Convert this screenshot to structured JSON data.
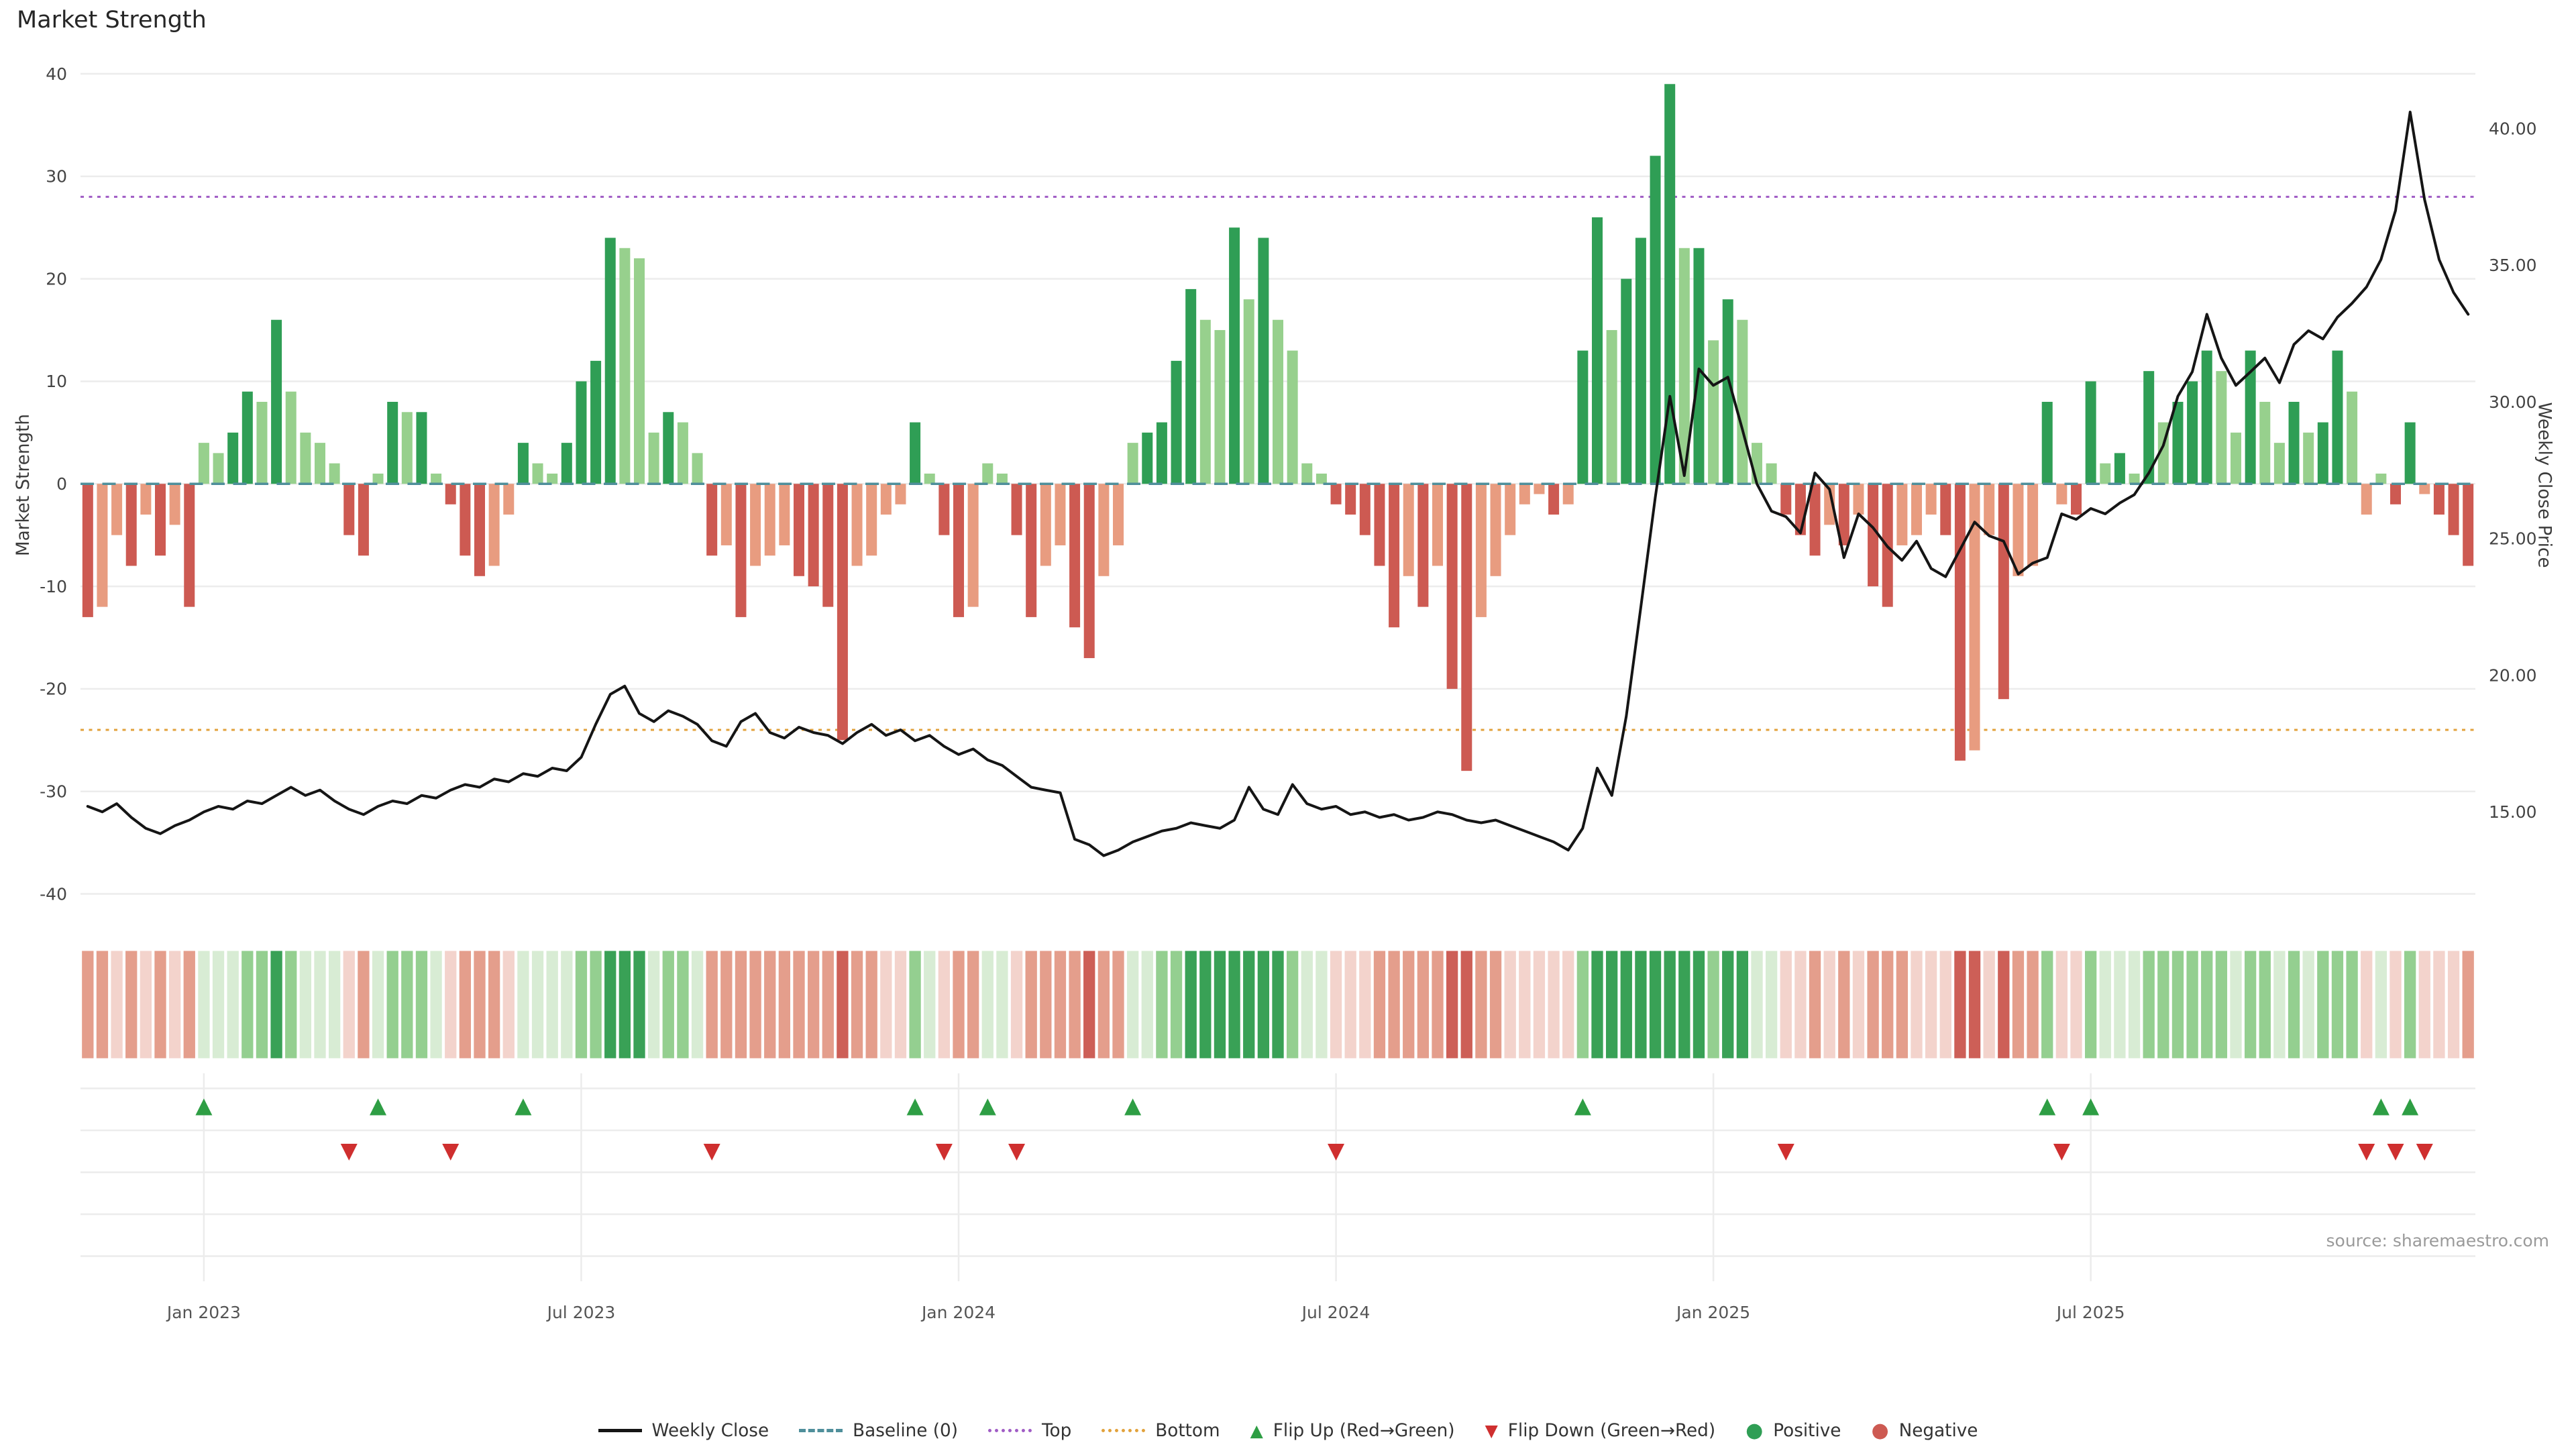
{
  "title": "Market Strength",
  "source": "source: sharemaestro.com",
  "axes": {
    "left_label": "Market Strength",
    "right_label": "Weekly Close Price",
    "left_ticks": [
      -40,
      -30,
      -20,
      -10,
      0,
      10,
      20,
      30,
      40
    ],
    "right_ticks": [
      15,
      20,
      25,
      30,
      35,
      40
    ],
    "right_tick_labels": [
      "15.00",
      "20.00",
      "25.00",
      "30.00",
      "35.00",
      "40.00"
    ],
    "x_tick_labels": [
      "Jan 2023",
      "Jul 2023",
      "Jan 2024",
      "Jul 2024",
      "Jan 2025",
      "Jul 2025"
    ]
  },
  "legend": [
    "Weekly Close",
    "Baseline (0)",
    "Top",
    "Bottom",
    "Flip Up (Red→Green)",
    "Flip Down (Green→Red)",
    "Positive",
    "Negative"
  ],
  "icons": {
    "flip_up": "▲",
    "flip_down": "▼",
    "dot": "●"
  },
  "colors": {
    "weekly_close": "#151515",
    "baseline": "#4f8f9b",
    "top": "#a05cc5",
    "bottom": "#e2a23b",
    "flip_up": "#2e9e44",
    "flip_down": "#cf2f2f",
    "positive_dark": "#2f9e55",
    "positive_light": "#97d08d",
    "negative_dark": "#cd5a52",
    "negative_light": "#e89c80",
    "heatmap_positive": [
      "#d8ecd4",
      "#94cf90",
      "#39a156"
    ],
    "heatmap_negative": [
      "#f3d3cc",
      "#e49e8c",
      "#cd5f57"
    ],
    "grid": "#ececec",
    "axis_text": "#444444",
    "source_text": "#9a9a9a"
  },
  "chart_data": {
    "type": "bar",
    "subtype": "bar+line+heatmap+flip-markers",
    "title": "Market Strength",
    "ylabel": "Market Strength",
    "y2label": "Weekly Close Price",
    "ylim": [
      -40,
      40
    ],
    "y2lim": [
      12,
      42
    ],
    "grid": true,
    "legend_position": "bottom-center",
    "x_unit": "week",
    "x_tick_positions": [
      8,
      34,
      60,
      86,
      112,
      138
    ],
    "x_tick_labels": [
      "Jan 2023",
      "Jul 2023",
      "Jan 2024",
      "Jul 2024",
      "Jan 2025",
      "Jul 2025"
    ],
    "thresholds": {
      "baseline": 0,
      "top": 28,
      "bottom": -24
    },
    "flip_rule": "flip-up marker where Market Strength crosses from negative to positive; flip-down marker where it crosses from positive to negative",
    "heatmap_rule": "one cell per week colored by sign and magnitude of Market Strength",
    "series": [
      {
        "name": "Market Strength",
        "type": "bar",
        "axis": "left",
        "values": [
          -13,
          -12,
          -5,
          -8,
          -3,
          -7,
          -4,
          -12,
          4,
          3,
          5,
          9,
          8,
          16,
          9,
          5,
          4,
          2,
          -5,
          -7,
          1,
          8,
          7,
          7,
          1,
          -2,
          -7,
          -9,
          -8,
          -3,
          4,
          2,
          1,
          4,
          10,
          12,
          24,
          23,
          22,
          5,
          7,
          6,
          3,
          -7,
          -6,
          -13,
          -8,
          -7,
          -6,
          -9,
          -10,
          -12,
          -25,
          -8,
          -7,
          -3,
          -2,
          6,
          1,
          -5,
          -13,
          -12,
          2,
          1,
          -5,
          -13,
          -8,
          -6,
          -14,
          -17,
          -9,
          -6,
          4,
          5,
          6,
          12,
          19,
          16,
          15,
          25,
          18,
          24,
          16,
          13,
          2,
          1,
          -2,
          -3,
          -5,
          -8,
          -14,
          -9,
          -12,
          -8,
          -20,
          -28,
          -13,
          -9,
          -5,
          -2,
          -1,
          -3,
          -2,
          13,
          26,
          15,
          20,
          24,
          32,
          39,
          23,
          23,
          14,
          18,
          16,
          4,
          2,
          -3,
          -5,
          -7,
          -4,
          -6,
          -3,
          -10,
          -12,
          -6,
          -5,
          -3,
          -5,
          -27,
          -26,
          -5,
          -21,
          -9,
          -8,
          8,
          -2,
          -3,
          10,
          2,
          3,
          1,
          11,
          6,
          8,
          10,
          13,
          11,
          5,
          13,
          8,
          4,
          8,
          5,
          6,
          13,
          9,
          -3,
          1,
          -2,
          6,
          -1,
          -3,
          -5,
          -8
        ]
      },
      {
        "name": "Weekly Close",
        "type": "line",
        "axis": "right",
        "values": [
          15.2,
          15.0,
          15.3,
          14.8,
          14.4,
          14.2,
          14.5,
          14.7,
          15.0,
          15.2,
          15.1,
          15.4,
          15.3,
          15.6,
          15.9,
          15.6,
          15.8,
          15.4,
          15.1,
          14.9,
          15.2,
          15.4,
          15.3,
          15.6,
          15.5,
          15.8,
          16.0,
          15.9,
          16.2,
          16.1,
          16.4,
          16.3,
          16.6,
          16.5,
          17.0,
          18.2,
          19.3,
          19.6,
          18.6,
          18.3,
          18.7,
          18.5,
          18.2,
          17.6,
          17.4,
          18.3,
          18.6,
          17.9,
          17.7,
          18.1,
          17.9,
          17.8,
          17.5,
          17.9,
          18.2,
          17.8,
          18.0,
          17.6,
          17.8,
          17.4,
          17.1,
          17.3,
          16.9,
          16.7,
          16.3,
          15.9,
          15.8,
          15.7,
          14.0,
          13.8,
          13.4,
          13.6,
          13.9,
          14.1,
          14.3,
          14.4,
          14.6,
          14.5,
          14.4,
          14.7,
          15.9,
          15.1,
          14.9,
          16.0,
          15.3,
          15.1,
          15.2,
          14.9,
          15.0,
          14.8,
          14.9,
          14.7,
          14.8,
          15.0,
          14.9,
          14.7,
          14.6,
          14.7,
          14.5,
          14.3,
          14.1,
          13.9,
          13.6,
          14.4,
          16.6,
          15.6,
          18.5,
          22.5,
          26.5,
          30.2,
          27.3,
          31.2,
          30.6,
          30.9,
          29.0,
          27.0,
          26.0,
          25.8,
          25.2,
          27.4,
          26.8,
          24.3,
          25.9,
          25.4,
          24.7,
          24.2,
          24.9,
          23.9,
          23.6,
          24.6,
          25.6,
          25.1,
          24.9,
          23.7,
          24.1,
          24.3,
          25.9,
          25.7,
          26.1,
          25.9,
          26.3,
          26.6,
          27.4,
          28.4,
          30.2,
          31.1,
          33.2,
          31.6,
          30.6,
          31.1,
          31.6,
          30.7,
          32.1,
          32.6,
          32.3,
          33.1,
          33.6,
          34.2,
          35.2,
          37.0,
          40.6,
          37.4,
          35.2,
          34.0,
          33.2
        ]
      }
    ]
  }
}
